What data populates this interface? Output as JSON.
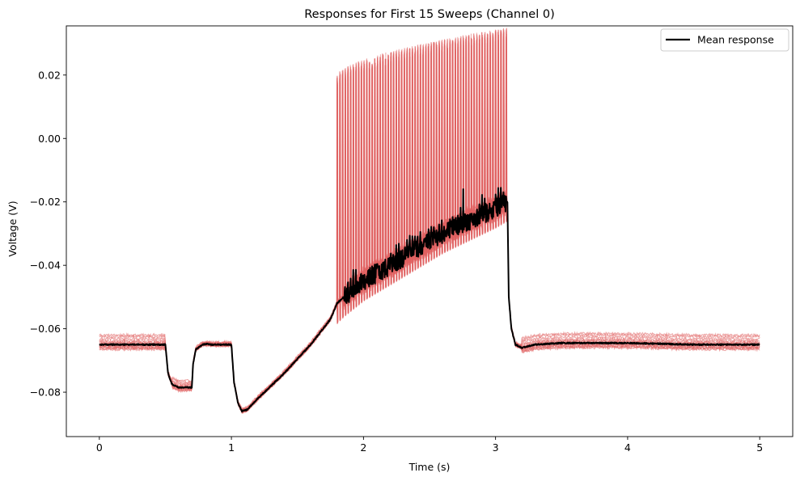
{
  "chart_data": {
    "type": "line",
    "title": "Responses for First 15 Sweeps (Channel 0)",
    "xlabel": "Time (s)",
    "ylabel": "Voltage (V)",
    "xlim": [
      -0.25,
      5.25
    ],
    "ylim": [
      -0.094,
      0.0355
    ],
    "xticks": [
      0,
      1,
      2,
      3,
      4,
      5
    ],
    "xtick_labels": [
      "0",
      "1",
      "2",
      "3",
      "4",
      "5"
    ],
    "yticks": [
      -0.08,
      -0.06,
      -0.04,
      -0.02,
      0.0,
      0.02
    ],
    "ytick_labels": [
      "−0.08",
      "−0.06",
      "−0.04",
      "−0.02",
      "0.00",
      "0.02"
    ],
    "grid": false,
    "legend": {
      "placement": "top-right",
      "entries": [
        "Mean response"
      ]
    },
    "colors": {
      "sweeps": "#e06060",
      "mean": "#000000"
    },
    "sweep_count": 15,
    "sweep_baseline_offsets": [
      0.003,
      -0.001,
      0.0,
      -0.0005,
      0.0005,
      -0.0012,
      0.0008,
      0.0025,
      -0.0003,
      0.0012,
      -0.0008,
      0.0002,
      -0.0015,
      0.0018,
      0.0
    ],
    "series": [
      {
        "name": "Mean response",
        "x": [
          0,
          0.5,
          0.52,
          0.55,
          0.6,
          0.7,
          0.71,
          0.73,
          0.78,
          0.82,
          0.85,
          1.0,
          1.02,
          1.05,
          1.08,
          1.12,
          1.2,
          1.4,
          1.6,
          1.75,
          1.8,
          1.85,
          2.0,
          2.2,
          2.4,
          2.6,
          2.8,
          3.0,
          3.08,
          3.09,
          3.1,
          3.12,
          3.15,
          3.2,
          3.3,
          3.5,
          4.0,
          4.5,
          5.0
        ],
        "y": [
          -0.065,
          -0.065,
          -0.074,
          -0.0775,
          -0.0785,
          -0.0785,
          -0.071,
          -0.0665,
          -0.065,
          -0.0648,
          -0.065,
          -0.065,
          -0.077,
          -0.0835,
          -0.086,
          -0.0855,
          -0.082,
          -0.074,
          -0.065,
          -0.057,
          -0.052,
          -0.05,
          -0.045,
          -0.04,
          -0.035,
          -0.03,
          -0.026,
          -0.022,
          -0.02,
          -0.02,
          -0.05,
          -0.06,
          -0.065,
          -0.066,
          -0.065,
          -0.0645,
          -0.0645,
          -0.065,
          -0.065
        ]
      }
    ],
    "spike_train": {
      "start": 1.8,
      "end": 3.08,
      "count": 64,
      "peak_min": 0.018,
      "peak_max": 0.033
    }
  }
}
